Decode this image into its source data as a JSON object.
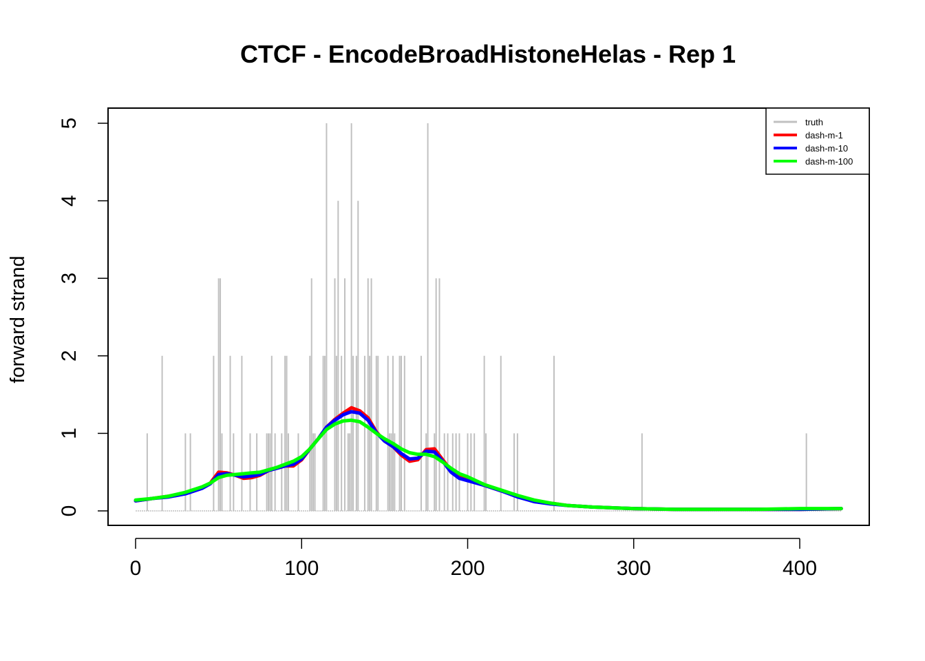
{
  "chart_data": {
    "type": "line",
    "title": "CTCF - EncodeBroadHistoneHelas - Rep 1",
    "xlabel": "",
    "ylabel": "forward strand",
    "xlim": [
      0,
      425
    ],
    "ylim": [
      0,
      5
    ],
    "x_ticks": [
      0,
      100,
      200,
      300,
      400
    ],
    "y_ticks": [
      0,
      1,
      2,
      3,
      4,
      5
    ],
    "legend_position": "top-right",
    "legend": [
      "truth",
      "dash-m-1",
      "dash-m-10",
      "dash-m-100"
    ],
    "truth_spikes": [
      {
        "x": 7,
        "y": 1
      },
      {
        "x": 16,
        "y": 2
      },
      {
        "x": 30,
        "y": 1
      },
      {
        "x": 33,
        "y": 1
      },
      {
        "x": 47,
        "y": 2
      },
      {
        "x": 50,
        "y": 3
      },
      {
        "x": 51,
        "y": 3
      },
      {
        "x": 52,
        "y": 1
      },
      {
        "x": 57,
        "y": 2
      },
      {
        "x": 59,
        "y": 1
      },
      {
        "x": 64,
        "y": 2
      },
      {
        "x": 69,
        "y": 1
      },
      {
        "x": 73,
        "y": 1
      },
      {
        "x": 79,
        "y": 1
      },
      {
        "x": 80,
        "y": 1
      },
      {
        "x": 81,
        "y": 1
      },
      {
        "x": 82,
        "y": 2
      },
      {
        "x": 84,
        "y": 1
      },
      {
        "x": 88,
        "y": 1
      },
      {
        "x": 90,
        "y": 2
      },
      {
        "x": 91,
        "y": 2
      },
      {
        "x": 92,
        "y": 1
      },
      {
        "x": 98,
        "y": 1
      },
      {
        "x": 105,
        "y": 2
      },
      {
        "x": 106,
        "y": 3
      },
      {
        "x": 107,
        "y": 1
      },
      {
        "x": 108,
        "y": 1
      },
      {
        "x": 113,
        "y": 2
      },
      {
        "x": 114,
        "y": 2
      },
      {
        "x": 115,
        "y": 5
      },
      {
        "x": 120,
        "y": 3
      },
      {
        "x": 121,
        "y": 2
      },
      {
        "x": 122,
        "y": 4
      },
      {
        "x": 124,
        "y": 2
      },
      {
        "x": 126,
        "y": 3
      },
      {
        "x": 128,
        "y": 1
      },
      {
        "x": 129,
        "y": 1
      },
      {
        "x": 130,
        "y": 5
      },
      {
        "x": 131,
        "y": 2
      },
      {
        "x": 133,
        "y": 2
      },
      {
        "x": 134,
        "y": 4
      },
      {
        "x": 138,
        "y": 2
      },
      {
        "x": 140,
        "y": 3
      },
      {
        "x": 141,
        "y": 2
      },
      {
        "x": 142,
        "y": 3
      },
      {
        "x": 145,
        "y": 2
      },
      {
        "x": 146,
        "y": 2
      },
      {
        "x": 152,
        "y": 2
      },
      {
        "x": 153,
        "y": 1
      },
      {
        "x": 154,
        "y": 1
      },
      {
        "x": 155,
        "y": 2
      },
      {
        "x": 156,
        "y": 1
      },
      {
        "x": 159,
        "y": 2
      },
      {
        "x": 160,
        "y": 2
      },
      {
        "x": 162,
        "y": 2
      },
      {
        "x": 172,
        "y": 2
      },
      {
        "x": 175,
        "y": 1
      },
      {
        "x": 176,
        "y": 5
      },
      {
        "x": 180,
        "y": 1
      },
      {
        "x": 181,
        "y": 3
      },
      {
        "x": 183,
        "y": 3
      },
      {
        "x": 186,
        "y": 1
      },
      {
        "x": 188,
        "y": 1
      },
      {
        "x": 191,
        "y": 1
      },
      {
        "x": 193,
        "y": 1
      },
      {
        "x": 195,
        "y": 1
      },
      {
        "x": 200,
        "y": 1
      },
      {
        "x": 202,
        "y": 1
      },
      {
        "x": 204,
        "y": 1
      },
      {
        "x": 210,
        "y": 2
      },
      {
        "x": 211,
        "y": 1
      },
      {
        "x": 220,
        "y": 2
      },
      {
        "x": 228,
        "y": 1
      },
      {
        "x": 230,
        "y": 1
      },
      {
        "x": 252,
        "y": 2
      },
      {
        "x": 305,
        "y": 1
      },
      {
        "x": 404,
        "y": 1
      }
    ],
    "series": [
      {
        "name": "dash-m-1",
        "color": "#ff0000",
        "points": [
          [
            0,
            0.13
          ],
          [
            10,
            0.16
          ],
          [
            20,
            0.19
          ],
          [
            30,
            0.23
          ],
          [
            40,
            0.3
          ],
          [
            45,
            0.36
          ],
          [
            50,
            0.5
          ],
          [
            55,
            0.49
          ],
          [
            60,
            0.46
          ],
          [
            65,
            0.42
          ],
          [
            70,
            0.43
          ],
          [
            75,
            0.46
          ],
          [
            80,
            0.52
          ],
          [
            85,
            0.55
          ],
          [
            90,
            0.58
          ],
          [
            95,
            0.58
          ],
          [
            100,
            0.66
          ],
          [
            105,
            0.8
          ],
          [
            110,
            0.93
          ],
          [
            115,
            1.08
          ],
          [
            120,
            1.18
          ],
          [
            125,
            1.26
          ],
          [
            130,
            1.33
          ],
          [
            135,
            1.29
          ],
          [
            140,
            1.2
          ],
          [
            145,
            1.02
          ],
          [
            150,
            0.9
          ],
          [
            155,
            0.83
          ],
          [
            160,
            0.72
          ],
          [
            165,
            0.64
          ],
          [
            170,
            0.66
          ],
          [
            175,
            0.79
          ],
          [
            180,
            0.8
          ],
          [
            185,
            0.66
          ],
          [
            190,
            0.52
          ],
          [
            195,
            0.44
          ],
          [
            200,
            0.4
          ],
          [
            205,
            0.37
          ],
          [
            210,
            0.33
          ],
          [
            220,
            0.26
          ],
          [
            230,
            0.19
          ],
          [
            240,
            0.12
          ],
          [
            250,
            0.1
          ],
          [
            260,
            0.07
          ],
          [
            275,
            0.05
          ],
          [
            300,
            0.03
          ],
          [
            325,
            0.02
          ],
          [
            350,
            0.02
          ],
          [
            375,
            0.02
          ],
          [
            400,
            0.02
          ],
          [
            425,
            0.03
          ]
        ]
      },
      {
        "name": "dash-m-10",
        "color": "#0000ff",
        "points": [
          [
            0,
            0.13
          ],
          [
            10,
            0.16
          ],
          [
            20,
            0.18
          ],
          [
            30,
            0.22
          ],
          [
            40,
            0.29
          ],
          [
            45,
            0.35
          ],
          [
            50,
            0.47
          ],
          [
            55,
            0.48
          ],
          [
            60,
            0.46
          ],
          [
            65,
            0.44
          ],
          [
            70,
            0.45
          ],
          [
            75,
            0.47
          ],
          [
            80,
            0.52
          ],
          [
            85,
            0.55
          ],
          [
            90,
            0.58
          ],
          [
            95,
            0.6
          ],
          [
            100,
            0.67
          ],
          [
            105,
            0.8
          ],
          [
            110,
            0.93
          ],
          [
            115,
            1.08
          ],
          [
            120,
            1.17
          ],
          [
            125,
            1.24
          ],
          [
            130,
            1.28
          ],
          [
            135,
            1.26
          ],
          [
            140,
            1.17
          ],
          [
            145,
            1.01
          ],
          [
            150,
            0.9
          ],
          [
            155,
            0.83
          ],
          [
            160,
            0.74
          ],
          [
            165,
            0.67
          ],
          [
            170,
            0.68
          ],
          [
            175,
            0.77
          ],
          [
            180,
            0.76
          ],
          [
            185,
            0.64
          ],
          [
            190,
            0.5
          ],
          [
            195,
            0.42
          ],
          [
            200,
            0.39
          ],
          [
            205,
            0.36
          ],
          [
            210,
            0.33
          ],
          [
            220,
            0.26
          ],
          [
            230,
            0.18
          ],
          [
            240,
            0.12
          ],
          [
            250,
            0.09
          ],
          [
            260,
            0.07
          ],
          [
            275,
            0.05
          ],
          [
            300,
            0.03
          ],
          [
            325,
            0.02
          ],
          [
            350,
            0.02
          ],
          [
            375,
            0.02
          ],
          [
            400,
            0.02
          ],
          [
            425,
            0.03
          ]
        ]
      },
      {
        "name": "dash-m-100",
        "color": "#00ff00",
        "points": [
          [
            0,
            0.14
          ],
          [
            10,
            0.16
          ],
          [
            20,
            0.19
          ],
          [
            30,
            0.24
          ],
          [
            40,
            0.31
          ],
          [
            45,
            0.36
          ],
          [
            50,
            0.43
          ],
          [
            55,
            0.46
          ],
          [
            60,
            0.47
          ],
          [
            65,
            0.48
          ],
          [
            70,
            0.49
          ],
          [
            75,
            0.5
          ],
          [
            80,
            0.53
          ],
          [
            85,
            0.56
          ],
          [
            90,
            0.6
          ],
          [
            95,
            0.64
          ],
          [
            100,
            0.7
          ],
          [
            105,
            0.8
          ],
          [
            110,
            0.93
          ],
          [
            115,
            1.05
          ],
          [
            120,
            1.12
          ],
          [
            125,
            1.16
          ],
          [
            130,
            1.17
          ],
          [
            135,
            1.15
          ],
          [
            140,
            1.08
          ],
          [
            145,
            1.0
          ],
          [
            150,
            0.93
          ],
          [
            155,
            0.87
          ],
          [
            160,
            0.8
          ],
          [
            165,
            0.75
          ],
          [
            170,
            0.73
          ],
          [
            175,
            0.73
          ],
          [
            180,
            0.7
          ],
          [
            185,
            0.63
          ],
          [
            190,
            0.55
          ],
          [
            195,
            0.48
          ],
          [
            200,
            0.44
          ],
          [
            205,
            0.39
          ],
          [
            210,
            0.34
          ],
          [
            220,
            0.27
          ],
          [
            230,
            0.2
          ],
          [
            240,
            0.14
          ],
          [
            250,
            0.1
          ],
          [
            260,
            0.07
          ],
          [
            275,
            0.05
          ],
          [
            300,
            0.03
          ],
          [
            325,
            0.02
          ],
          [
            350,
            0.02
          ],
          [
            375,
            0.02
          ],
          [
            400,
            0.03
          ],
          [
            425,
            0.03
          ]
        ]
      }
    ],
    "colors": {
      "truth": "#c0c0c0",
      "dash-m-1": "#ff0000",
      "dash-m-10": "#0000ff",
      "dash-m-100": "#00ff00"
    }
  }
}
